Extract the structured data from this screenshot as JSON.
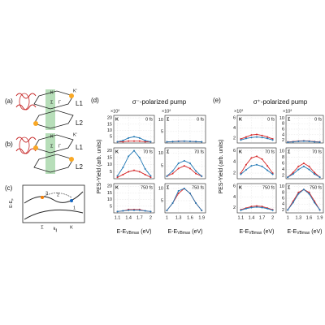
{
  "diagram": {
    "a": "(a)",
    "b": "(b)",
    "c": "(c)",
    "K": "K",
    "Kp": "K'",
    "Sigma": "Σ",
    "Gamma": "Γ",
    "L1": "L1",
    "L2": "L2",
    "ylab": "E-E",
    "ylab_sub": "F",
    "kpar": "k",
    "kpar_sub": "∥",
    "n1": "1",
    "n2": "2",
    "n3": "3"
  },
  "figure": {
    "d": "(d)",
    "e": "(e)",
    "d_title": "σ⁻-polarized pump",
    "e_title": "σ⁺-polarized pump",
    "ylabel": "PES-Yield (arb. units)",
    "xlabel": "E-E",
    "xlabel_sub": "VBmax",
    "xlabel_unit": " (eV)"
  },
  "chart_data": [
    {
      "type": "line",
      "label": "K",
      "time": "0 fs",
      "multiplier": "×10²",
      "x": [
        1.1,
        1.25,
        1.4,
        1.55,
        1.7,
        1.85,
        2.0
      ],
      "series": [
        {
          "color": "#d62728",
          "values": [
            1,
            1,
            1.5,
            1.5,
            1.5,
            1,
            1
          ]
        },
        {
          "color": "#1f77b4",
          "values": [
            1,
            2,
            4,
            5,
            4,
            2,
            1
          ]
        }
      ],
      "xlim": [
        1.0,
        2.1
      ],
      "ylim": [
        0,
        22
      ],
      "xticks": [
        1.1,
        1.4,
        1.7,
        2.0
      ],
      "yticks": [
        5,
        10,
        15,
        20
      ],
      "grid": true
    },
    {
      "type": "line",
      "label": "Σ",
      "time": "0 fs",
      "multiplier": "×10²",
      "x": [
        1.0,
        1.15,
        1.3,
        1.45,
        1.6,
        1.75,
        1.9
      ],
      "series": [
        {
          "color": "#d62728",
          "values": [
            0.5,
            0.6,
            0.8,
            0.8,
            0.7,
            0.6,
            0.5
          ]
        },
        {
          "color": "#1f77b4",
          "values": [
            0.5,
            0.6,
            0.7,
            0.8,
            0.7,
            0.6,
            0.5
          ]
        }
      ],
      "xlim": [
        0.95,
        2.0
      ],
      "ylim": [
        0,
        12
      ],
      "xticks": [
        1.0,
        1.3,
        1.6,
        1.9
      ],
      "yticks": [
        5,
        10
      ],
      "grid": true
    },
    {
      "type": "line",
      "label": "K",
      "time": "70 fs",
      "x": [
        1.1,
        1.25,
        1.4,
        1.55,
        1.7,
        1.85,
        2.0
      ],
      "series": [
        {
          "color": "#d62728",
          "values": [
            1,
            3,
            5,
            6,
            5,
            3,
            1
          ]
        },
        {
          "color": "#1f77b4",
          "values": [
            2,
            8,
            16,
            20,
            15,
            7,
            2
          ]
        }
      ],
      "xlim": [
        1.0,
        2.1
      ],
      "ylim": [
        0,
        22
      ],
      "xticks": [
        1.1,
        1.4,
        1.7,
        2.0
      ],
      "yticks": [
        5,
        10,
        15,
        20
      ],
      "grid": true
    },
    {
      "type": "line",
      "label": "Σ",
      "time": "70 fs",
      "x": [
        1.0,
        1.15,
        1.3,
        1.45,
        1.6,
        1.75,
        1.9
      ],
      "series": [
        {
          "color": "#d62728",
          "values": [
            1,
            2,
            4,
            5,
            4,
            2,
            1
          ]
        },
        {
          "color": "#1f77b4",
          "values": [
            1,
            3,
            6,
            7,
            6,
            3,
            1
          ]
        }
      ],
      "xlim": [
        0.95,
        2.0
      ],
      "ylim": [
        0,
        12
      ],
      "xticks": [
        1.0,
        1.3,
        1.6,
        1.9
      ],
      "yticks": [
        5,
        10
      ],
      "grid": true
    },
    {
      "type": "line",
      "label": "K",
      "time": "750 fs",
      "x": [
        1.1,
        1.25,
        1.4,
        1.55,
        1.7,
        1.85,
        2.0
      ],
      "series": [
        {
          "color": "#d62728",
          "values": [
            1,
            1.5,
            2.5,
            2.5,
            2.5,
            1.5,
            1
          ]
        },
        {
          "color": "#1f77b4",
          "values": [
            1,
            1.5,
            2,
            2,
            2,
            1.5,
            1
          ]
        }
      ],
      "xlim": [
        1.0,
        2.1
      ],
      "ylim": [
        0,
        22
      ],
      "xticks": [
        1.1,
        1.4,
        1.7,
        2.0
      ],
      "yticks": [
        5,
        10,
        15,
        20
      ],
      "grid": true
    },
    {
      "type": "line",
      "label": "Σ",
      "time": "750 fs",
      "x": [
        1.0,
        1.15,
        1.3,
        1.45,
        1.6,
        1.75,
        1.9
      ],
      "series": [
        {
          "color": "#d62728",
          "values": [
            1,
            4,
            8,
            10,
            8,
            4,
            1
          ]
        },
        {
          "color": "#1f77b4",
          "values": [
            1,
            4,
            9,
            10,
            8,
            4,
            1
          ]
        }
      ],
      "xlim": [
        0.95,
        2.0
      ],
      "ylim": [
        0,
        12
      ],
      "xticks": [
        1.0,
        1.3,
        1.6,
        1.9
      ],
      "yticks": [
        5,
        10
      ],
      "grid": true
    },
    {
      "type": "line",
      "label": "K",
      "time": "0 fs",
      "multiplier": "×10²",
      "x": [
        1.1,
        1.25,
        1.4,
        1.55,
        1.7,
        1.85,
        2.0
      ],
      "series": [
        {
          "color": "#d62728",
          "values": [
            1.8,
            2.2,
            2.6,
            2.7,
            2.5,
            2.2,
            1.8
          ]
        },
        {
          "color": "#1f77b4",
          "values": [
            1.6,
            1.9,
            2.1,
            2.2,
            2.1,
            1.9,
            1.6
          ]
        }
      ],
      "xlim": [
        1.0,
        2.1
      ],
      "ylim": [
        1,
        6.5
      ],
      "xticks": [
        1.1,
        1.4,
        1.7,
        2.0
      ],
      "yticks": [
        2,
        4,
        6
      ],
      "grid": true
    },
    {
      "type": "line",
      "label": "Σ",
      "time": "0 fs",
      "multiplier": "×10²",
      "x": [
        1.0,
        1.15,
        1.3,
        1.45,
        1.6,
        1.75,
        1.9
      ],
      "series": [
        {
          "color": "#d62728",
          "values": [
            1.4,
            1.5,
            1.7,
            1.8,
            1.7,
            1.5,
            1.4
          ]
        },
        {
          "color": "#1f77b4",
          "values": [
            1.3,
            1.4,
            1.6,
            1.7,
            1.6,
            1.4,
            1.3
          ]
        }
      ],
      "xlim": [
        0.95,
        2.0
      ],
      "ylim": [
        1,
        11
      ],
      "xticks": [
        1.0,
        1.3,
        1.6,
        1.9
      ],
      "yticks": [
        2,
        4,
        6,
        8,
        10
      ],
      "grid": true
    },
    {
      "type": "line",
      "label": "K",
      "time": "70 fs",
      "x": [
        1.1,
        1.25,
        1.4,
        1.55,
        1.7,
        1.85,
        2.0
      ],
      "series": [
        {
          "color": "#d62728",
          "values": [
            2,
            3.5,
            4.7,
            5,
            4.5,
            3.3,
            2
          ]
        },
        {
          "color": "#1f77b4",
          "values": [
            1.8,
            2.6,
            3.3,
            3.5,
            3.2,
            2.5,
            1.8
          ]
        }
      ],
      "xlim": [
        1.0,
        2.1
      ],
      "ylim": [
        1,
        6.5
      ],
      "xticks": [
        1.1,
        1.4,
        1.7,
        2.0
      ],
      "yticks": [
        2,
        4,
        6
      ],
      "grid": true
    },
    {
      "type": "line",
      "label": "Σ",
      "time": "70 fs",
      "x": [
        1.0,
        1.15,
        1.3,
        1.45,
        1.6,
        1.75,
        1.9
      ],
      "series": [
        {
          "color": "#d62728",
          "values": [
            1.5,
            3,
            5,
            6,
            5,
            3,
            1.5
          ]
        },
        {
          "color": "#1f77b4",
          "values": [
            1.5,
            2.5,
            4,
            5,
            4,
            2.5,
            1.5
          ]
        }
      ],
      "xlim": [
        0.95,
        2.0
      ],
      "ylim": [
        1,
        11
      ],
      "xticks": [
        1.0,
        1.3,
        1.6,
        1.9
      ],
      "yticks": [
        2,
        4,
        6,
        8,
        10
      ],
      "grid": true
    },
    {
      "type": "line",
      "label": "K",
      "time": "750 fs",
      "x": [
        1.1,
        1.25,
        1.4,
        1.55,
        1.7,
        1.85,
        2.0
      ],
      "series": [
        {
          "color": "#d62728",
          "values": [
            1.6,
            1.9,
            2.2,
            2.3,
            2.2,
            1.9,
            1.6
          ]
        },
        {
          "color": "#1f77b4",
          "values": [
            1.5,
            1.8,
            2.0,
            2.1,
            2.0,
            1.8,
            1.5
          ]
        }
      ],
      "xlim": [
        1.0,
        2.1
      ],
      "ylim": [
        1,
        6.5
      ],
      "xticks": [
        1.1,
        1.4,
        1.7,
        2.0
      ],
      "yticks": [
        2,
        4,
        6
      ],
      "grid": true
    },
    {
      "type": "line",
      "label": "Σ",
      "time": "750 fs",
      "x": [
        1.0,
        1.15,
        1.3,
        1.45,
        1.6,
        1.75,
        1.9
      ],
      "series": [
        {
          "color": "#d62728",
          "values": [
            2,
            5,
            8,
            9,
            8,
            5,
            2
          ]
        },
        {
          "color": "#1f77b4",
          "values": [
            2,
            4.5,
            7.5,
            9,
            7.5,
            4.5,
            2
          ]
        }
      ],
      "xlim": [
        0.95,
        2.0
      ],
      "ylim": [
        1,
        11
      ],
      "xticks": [
        1.0,
        1.3,
        1.6,
        1.9
      ],
      "yticks": [
        2,
        4,
        6,
        8,
        10
      ],
      "grid": true
    }
  ]
}
